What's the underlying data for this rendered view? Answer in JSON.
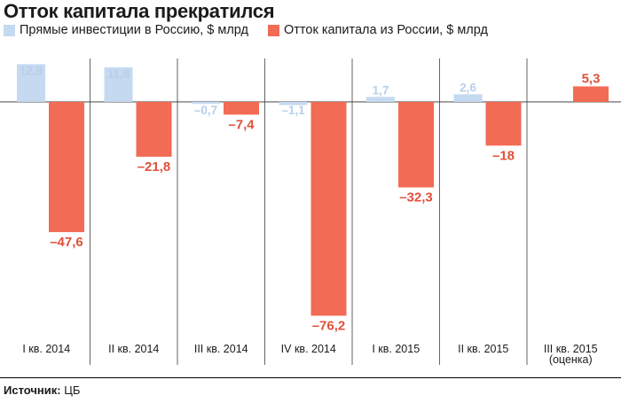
{
  "title": "Отток капитала прекратился",
  "source_label": "Источник:",
  "source_value": "ЦБ",
  "colors": {
    "investment": "#c5d9f1",
    "investment_label": "#b8cfe9",
    "outflow": "#f26b55",
    "outflow_label": "#e0503a"
  },
  "chart_data": {
    "type": "bar",
    "title": "Отток капитала прекратился",
    "categories": [
      "I кв. 2014",
      "II кв. 2014",
      "III кв. 2014",
      "IV кв. 2014",
      "I кв. 2015",
      "II кв. 2015",
      "III кв. 2015\n(оценка)"
    ],
    "series": [
      {
        "name": "Прямые инвестиции в Россию, $ млрд",
        "values": [
          12.9,
          11.8,
          -0.7,
          -1.1,
          1.7,
          2.6,
          null
        ],
        "labels": [
          "12,9",
          "11,8",
          "–0,7",
          "–1,1",
          "1,7",
          "2,6",
          ""
        ]
      },
      {
        "name": "Отток капитала из России, $ млрд",
        "values": [
          -47.6,
          -21.8,
          -7.4,
          -76.2,
          -32.3,
          -18,
          5.3
        ],
        "labels": [
          "–47,6",
          "–21,8",
          "–7,4",
          "–76,2",
          "–32,3",
          "–18",
          "5,3"
        ]
      }
    ],
    "legend": "top-left",
    "grid": false
  }
}
